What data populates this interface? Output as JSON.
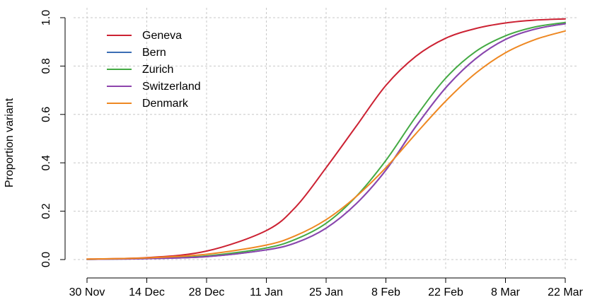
{
  "chart_data": {
    "type": "line",
    "title": "",
    "xlabel": "",
    "ylabel": "Proportion variant",
    "x_ticks": [
      "30 Nov",
      "14 Dec",
      "28 Dec",
      "11 Jan",
      "25 Jan",
      "8 Feb",
      "22 Feb",
      "8 Mar",
      "22 Mar"
    ],
    "x": [
      "2020-11-30",
      "2020-12-14",
      "2020-12-28",
      "2021-01-11",
      "2021-01-18",
      "2021-01-25",
      "2021-02-01",
      "2021-02-08",
      "2021-02-15",
      "2021-02-22",
      "2021-03-01",
      "2021-03-08",
      "2021-03-15",
      "2021-03-22"
    ],
    "xlim": [
      "2020-11-30",
      "2021-03-22"
    ],
    "y_ticks": [
      "0.0",
      "0.2",
      "0.4",
      "0.6",
      "0.8",
      "1.0"
    ],
    "ylim": [
      0,
      1
    ],
    "grid": true,
    "legend_position": "top-left",
    "series": [
      {
        "name": "Geneva",
        "color": "#cc2233",
        "values": [
          0.002,
          0.008,
          0.035,
          0.12,
          0.22,
          0.38,
          0.55,
          0.72,
          0.84,
          0.915,
          0.955,
          0.978,
          0.99,
          0.995
        ]
      },
      {
        "name": "Bern",
        "color": "#3b6eb4",
        "values": [
          0.001,
          0.004,
          0.012,
          0.04,
          0.07,
          0.13,
          0.23,
          0.37,
          0.55,
          0.71,
          0.83,
          0.91,
          0.953,
          0.975
        ]
      },
      {
        "name": "Zurich",
        "color": "#44aa44",
        "values": [
          0.001,
          0.005,
          0.015,
          0.048,
          0.085,
          0.15,
          0.26,
          0.41,
          0.59,
          0.75,
          0.86,
          0.925,
          0.962,
          0.98
        ]
      },
      {
        "name": "Switzerland",
        "color": "#8e44ad",
        "values": [
          0.001,
          0.004,
          0.012,
          0.04,
          0.07,
          0.13,
          0.23,
          0.37,
          0.55,
          0.71,
          0.83,
          0.91,
          0.953,
          0.975
        ]
      },
      {
        "name": "Denmark",
        "color": "#ee8822",
        "values": [
          0.002,
          0.007,
          0.022,
          0.06,
          0.1,
          0.165,
          0.26,
          0.38,
          0.52,
          0.655,
          0.77,
          0.855,
          0.91,
          0.945
        ]
      }
    ]
  }
}
